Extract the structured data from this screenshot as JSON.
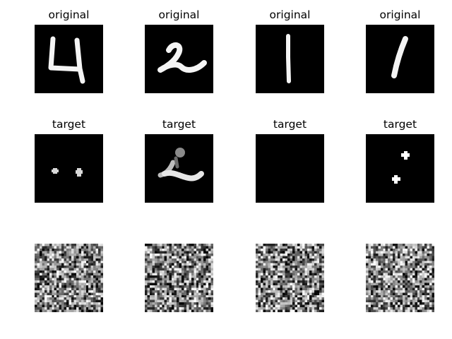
{
  "panels": [
    {
      "row": 0,
      "col": 0,
      "title": "original",
      "digit": "4"
    },
    {
      "row": 0,
      "col": 1,
      "title": "original",
      "digit": "2"
    },
    {
      "row": 0,
      "col": 2,
      "title": "original",
      "digit": "1"
    },
    {
      "row": 0,
      "col": 3,
      "title": "original",
      "digit": "1"
    },
    {
      "row": 1,
      "col": 0,
      "title": "target"
    },
    {
      "row": 1,
      "col": 1,
      "title": "target"
    },
    {
      "row": 1,
      "col": 2,
      "title": "target"
    },
    {
      "row": 1,
      "col": 3,
      "title": "target"
    },
    {
      "row": 2,
      "col": 0,
      "title": ""
    },
    {
      "row": 2,
      "col": 1,
      "title": ""
    },
    {
      "row": 2,
      "col": 2,
      "title": ""
    },
    {
      "row": 2,
      "col": 3,
      "title": ""
    }
  ],
  "colors": {
    "background": "#000000",
    "foreground": "#ffffff"
  }
}
